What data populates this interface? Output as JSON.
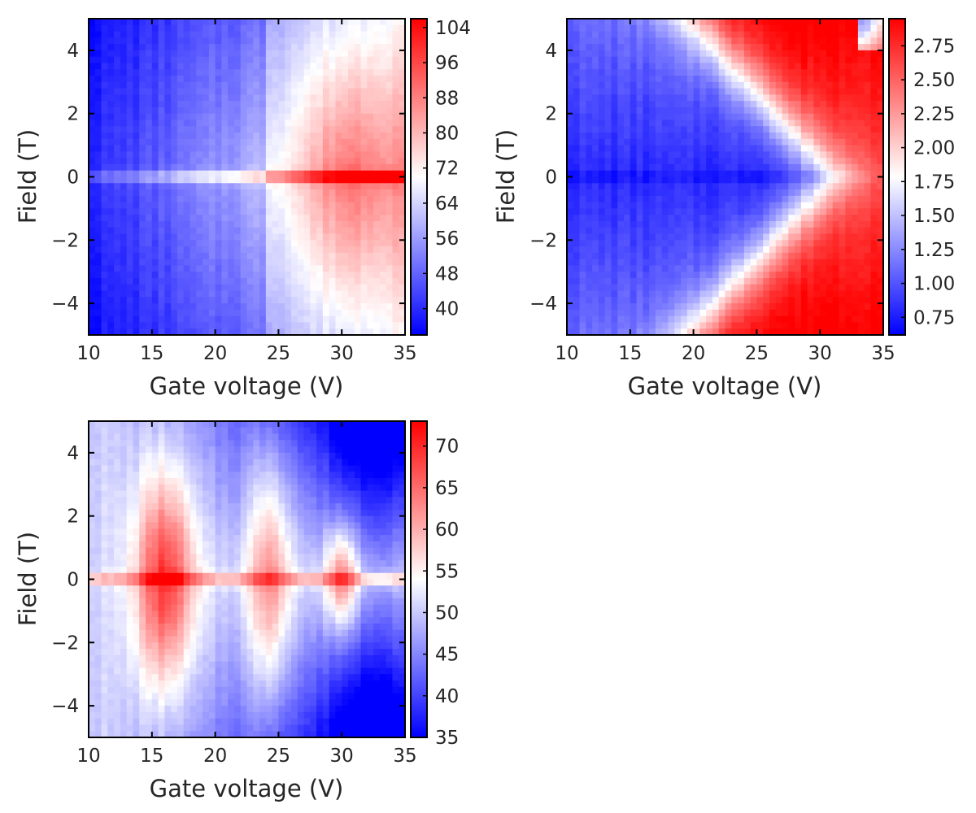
{
  "colors": {
    "low": "#0000ff",
    "mid": "#ffffff",
    "high": "#ff0000",
    "frame": "#000000",
    "text": "#262626"
  },
  "chart_data": [
    {
      "type": "heatmap",
      "panel": "top-left",
      "xlabel": "Gate voltage (V)",
      "ylabel": "Field (T)",
      "xlim": [
        10,
        35
      ],
      "ylim": [
        -5,
        5
      ],
      "xticks": [
        10,
        15,
        20,
        25,
        30,
        35
      ],
      "yticks": [
        -4,
        -2,
        0,
        2,
        4
      ],
      "colorbar": {
        "range": [
          34,
          106
        ],
        "ticks": [
          40,
          48,
          56,
          64,
          72,
          80,
          88,
          96,
          104
        ],
        "cmap": "bwr"
      },
      "pattern": "increasing with gate voltage; sharp maximum ridge at field 0",
      "approx_values": {
        "gate_voltage": [
          10,
          15,
          20,
          25,
          30,
          35
        ],
        "value_at_field_0": [
          45,
          66,
          70,
          88,
          100,
          104
        ],
        "value_at_field_4": [
          40,
          55,
          60,
          78,
          84,
          90
        ]
      }
    },
    {
      "type": "heatmap",
      "panel": "top-right",
      "xlabel": "Gate voltage (V)",
      "ylabel": "Field (T)",
      "xlim": [
        10,
        35
      ],
      "ylim": [
        -5,
        5
      ],
      "xticks": [
        10,
        15,
        20,
        25,
        30,
        35
      ],
      "yticks": [
        -4,
        -2,
        0,
        2,
        4
      ],
      "colorbar": {
        "range": [
          0.62,
          2.95
        ],
        "ticks": [
          "0.75",
          "1.00",
          "1.25",
          "1.50",
          "1.75",
          "2.00",
          "2.25",
          "2.50",
          "2.75"
        ],
        "cmap": "bwr"
      },
      "pattern": "V-shaped boundary: high values at large |field| and high gate voltage, low values near field 0",
      "approx_values": {
        "gate_voltage": [
          10,
          20,
          25,
          30,
          35
        ],
        "value_at_field_0": [
          0.8,
          1.1,
          1.3,
          1.6,
          2.6
        ],
        "value_at_field_4": [
          1.0,
          1.7,
          2.3,
          2.7,
          2.95
        ]
      }
    },
    {
      "type": "heatmap",
      "panel": "bottom-left",
      "xlabel": "Gate voltage (V)",
      "ylabel": "Field (T)",
      "xlim": [
        10,
        35
      ],
      "ylim": [
        -5,
        5
      ],
      "xticks": [
        10,
        15,
        20,
        25,
        30,
        35
      ],
      "yticks": [
        -4,
        -2,
        0,
        2,
        4
      ],
      "colorbar": {
        "range": [
          35,
          73
        ],
        "ticks": [
          35,
          40,
          45,
          50,
          55,
          60,
          65,
          70
        ],
        "cmap": "bwr"
      },
      "pattern": "maxima near field 0 at gate voltages of about 16, 24 and 30 V; low values at high gate voltage and large |field|",
      "approx_values": {
        "gate_voltage": [
          10,
          16,
          20,
          24,
          30,
          35
        ],
        "value_at_field_0": [
          52,
          73,
          60,
          68,
          70,
          55
        ],
        "value_at_field_4": [
          48,
          50,
          47,
          48,
          40,
          35
        ]
      }
    }
  ]
}
